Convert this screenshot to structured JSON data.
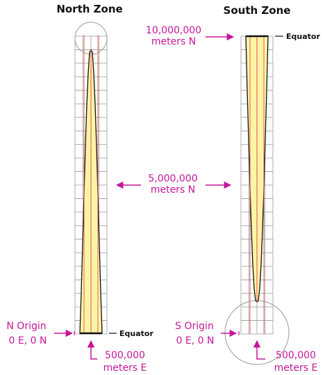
{
  "north": {
    "title": "North Zone",
    "equator_label": "Equator",
    "origin_label": [
      "N Origin",
      "0 E, 0 N"
    ],
    "easting_label": [
      "500,000",
      "meters E"
    ]
  },
  "south": {
    "title": "South Zone",
    "equator_label": "Equator",
    "origin_label": [
      "S Origin",
      "0 E, 0 N"
    ],
    "easting_label": [
      "500,000",
      "meters E"
    ],
    "northing_label": [
      "10,000,000",
      "meters N"
    ]
  },
  "center_label": [
    "5,000,000",
    "meters N"
  ],
  "colors": {
    "accent": "#c4169a",
    "grid": "#9a9a9a",
    "fill": "#fdf5a6",
    "meridian": "#e05050",
    "outline": "#111111"
  }
}
